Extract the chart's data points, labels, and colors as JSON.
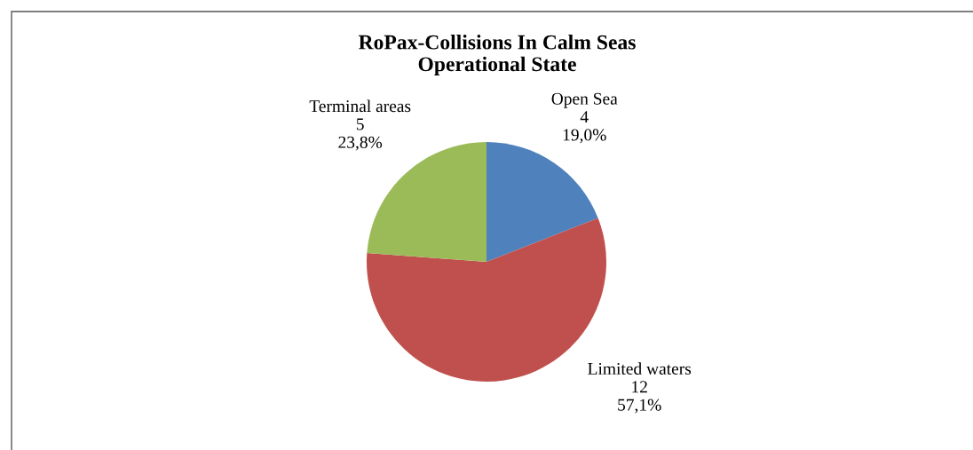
{
  "chart_data": {
    "type": "pie",
    "title": "RoPax-Collisions In Calm Seas\nOperational State",
    "categories": [
      "Open Sea",
      "Limited waters",
      "Terminal areas"
    ],
    "values": [
      4,
      12,
      5
    ],
    "colors": [
      "#4f81bd",
      "#c0504d",
      "#9bbb59"
    ],
    "value_labels": [
      "4\n19,0%",
      "12\n57,1%",
      "5\n23,8%"
    ]
  }
}
